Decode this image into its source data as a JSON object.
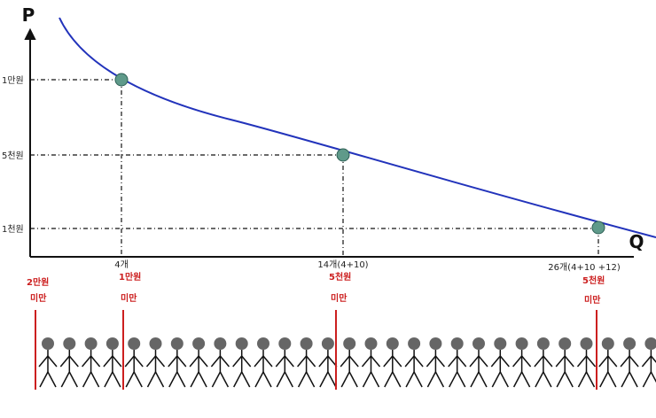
{
  "axes": {
    "y_label": "P",
    "x_label": "Q"
  },
  "y_ticks": [
    {
      "label": "1만원"
    },
    {
      "label": "5천원"
    },
    {
      "label": "1천원"
    }
  ],
  "x_ticks": [
    {
      "label": "4개"
    },
    {
      "label": "14개(4+10)"
    },
    {
      "label": "26개(4+10 +12)"
    }
  ],
  "thresholds": [
    {
      "line1": "2만원",
      "line2": "미만"
    },
    {
      "line1": "1만원",
      "line2": "미만"
    },
    {
      "line1": "5천원",
      "line2": "미만"
    },
    {
      "line1": "5천원",
      "line2": "미만"
    }
  ],
  "chart_data": {
    "type": "line",
    "curve": "downward-sloping demand curve",
    "points": [
      {
        "x": "4개",
        "y": "1만원"
      },
      {
        "x": "14개(4+10)",
        "y": "5천원"
      },
      {
        "x": "26개(4+10 +12)",
        "y": "1천원"
      }
    ],
    "ylabel": "P",
    "xlabel": "Q"
  },
  "crowd": {
    "people_count": 30
  },
  "colors": {
    "curve": "#2233bb",
    "point": "#5f9a8a",
    "threshold": "#cc1f1f",
    "person": "#666666"
  }
}
